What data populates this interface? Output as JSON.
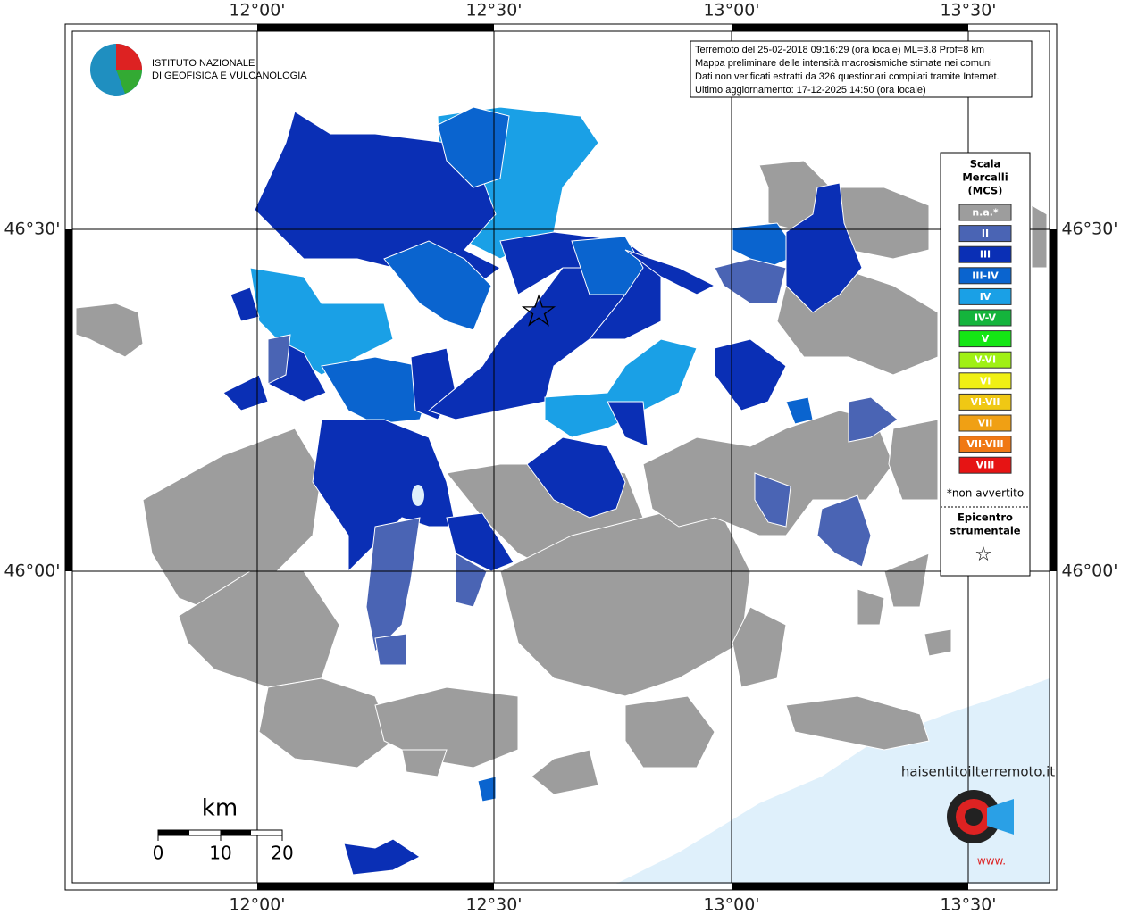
{
  "graticule": {
    "lon_labels": [
      "12°00'",
      "12°30'",
      "13°00'",
      "13°30'"
    ],
    "lat_labels": [
      "46°30'",
      "46°00'"
    ]
  },
  "info": [
    "Terremoto del 25-02-2018 09:16:29 (ora locale) ML=3.8 Prof=8 km",
    "Mappa preliminare delle intensità macrosismiche stimate nei comuni",
    "Dati non verificati estratti da 326 questionari compilati tramite Internet.",
    "Ultimo aggiornamento: 17-12-2025 14:50 (ora locale)"
  ],
  "logo": [
    "ISTITUTO NAZIONALE",
    "DI GEOFISICA E VULCANOLOGIA"
  ],
  "legend": {
    "title": [
      "Scala",
      "Mercalli",
      "(MCS)"
    ],
    "classes": [
      {
        "label": "n.a.*",
        "color": "#9d9d9d"
      },
      {
        "label": "II",
        "color": "#4a64b4"
      },
      {
        "label": "III",
        "color": "#0a2fb5"
      },
      {
        "label": "III-IV",
        "color": "#0a64cf"
      },
      {
        "label": "IV",
        "color": "#1aa0e6"
      },
      {
        "label": "IV-V",
        "color": "#14b43c"
      },
      {
        "label": "V",
        "color": "#14e614"
      },
      {
        "label": "V-VI",
        "color": "#a0f014"
      },
      {
        "label": "VI",
        "color": "#f0f014"
      },
      {
        "label": "VI-VII",
        "color": "#f0c814"
      },
      {
        "label": "VII",
        "color": "#f0a014"
      },
      {
        "label": "VII-VIII",
        "color": "#f07814"
      },
      {
        "label": "VIII",
        "color": "#e61414"
      }
    ],
    "note": "*non avvertito",
    "epicenter": [
      "Epicentro",
      "strumentale"
    ]
  },
  "scale": {
    "unit": "km",
    "ticks": [
      "0",
      "10",
      "20"
    ]
  },
  "brand": [
    "haisentitoilterremoto.it",
    "www."
  ]
}
